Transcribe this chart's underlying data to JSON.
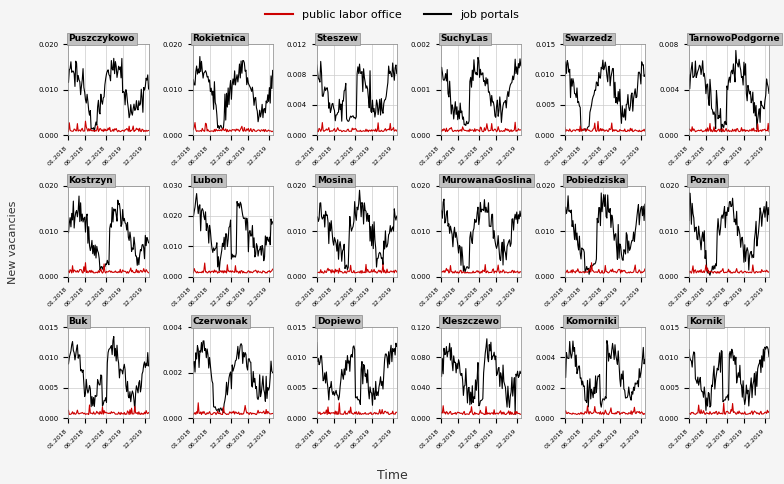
{
  "title": "",
  "xlabel": "Time",
  "ylabel": "New vacancies",
  "legend_labels": [
    "public labor office",
    "job portals"
  ],
  "legend_colors": [
    "#CC0000",
    "#000000"
  ],
  "subplots": [
    {
      "name": "Puszczykowo",
      "row": 0,
      "col": 0,
      "ylim": [
        0,
        0.02
      ],
      "yticks": [
        0.0,
        0.01,
        0.02
      ]
    },
    {
      "name": "Rokietnica",
      "row": 0,
      "col": 1,
      "ylim": [
        0,
        0.02
      ],
      "yticks": [
        0.0,
        0.01,
        0.02
      ]
    },
    {
      "name": "Steszew",
      "row": 0,
      "col": 2,
      "ylim": [
        0,
        0.012
      ],
      "yticks": [
        0.0,
        0.004,
        0.008,
        0.012
      ]
    },
    {
      "name": "SuchyLas",
      "row": 0,
      "col": 3,
      "ylim": [
        0,
        0.002
      ],
      "yticks": [
        0.0,
        0.001,
        0.002
      ]
    },
    {
      "name": "Swarzedz",
      "row": 0,
      "col": 4,
      "ylim": [
        0,
        0.015
      ],
      "yticks": [
        0.0,
        0.005,
        0.01,
        0.015
      ]
    },
    {
      "name": "TarnowoPodgorne",
      "row": 0,
      "col": 5,
      "ylim": [
        0,
        0.008
      ],
      "yticks": [
        0.0,
        0.004,
        0.008
      ]
    },
    {
      "name": "Kostrzyn",
      "row": 1,
      "col": 0,
      "ylim": [
        0,
        0.02
      ],
      "yticks": [
        0.0,
        0.01,
        0.02
      ]
    },
    {
      "name": "Lubon",
      "row": 1,
      "col": 1,
      "ylim": [
        0,
        0.03
      ],
      "yticks": [
        0.0,
        0.01,
        0.02,
        0.03
      ]
    },
    {
      "name": "Mosina",
      "row": 1,
      "col": 2,
      "ylim": [
        0,
        0.02
      ],
      "yticks": [
        0.0,
        0.01,
        0.02
      ]
    },
    {
      "name": "MurowanaGoslina",
      "row": 1,
      "col": 3,
      "ylim": [
        0,
        0.02
      ],
      "yticks": [
        0.0,
        0.01,
        0.02
      ]
    },
    {
      "name": "Pobiedziska",
      "row": 1,
      "col": 4,
      "ylim": [
        0,
        0.02
      ],
      "yticks": [
        0.0,
        0.01,
        0.02
      ]
    },
    {
      "name": "Poznan",
      "row": 1,
      "col": 5,
      "ylim": [
        0,
        0.02
      ],
      "yticks": [
        0.0,
        0.01,
        0.02
      ]
    },
    {
      "name": "Buk",
      "row": 2,
      "col": 0,
      "ylim": [
        0,
        0.015
      ],
      "yticks": [
        0.0,
        0.005,
        0.01,
        0.015
      ]
    },
    {
      "name": "Czerwonak",
      "row": 2,
      "col": 1,
      "ylim": [
        0,
        0.004
      ],
      "yticks": [
        0.0,
        0.002,
        0.004
      ]
    },
    {
      "name": "Dopiewo",
      "row": 2,
      "col": 2,
      "ylim": [
        0,
        0.015
      ],
      "yticks": [
        0.0,
        0.005,
        0.01,
        0.015
      ]
    },
    {
      "name": "Kleszczewo",
      "row": 2,
      "col": 3,
      "ylim": [
        0,
        0.12
      ],
      "yticks": [
        0.0,
        0.04,
        0.08,
        0.12
      ]
    },
    {
      "name": "Komorniki",
      "row": 2,
      "col": 4,
      "ylim": [
        0,
        0.006
      ],
      "yticks": [
        0.0,
        0.002,
        0.004,
        0.006
      ]
    },
    {
      "name": "Kornik",
      "row": 2,
      "col": 5,
      "ylim": [
        0,
        0.015
      ],
      "yticks": [
        0.0,
        0.005,
        0.01,
        0.015
      ]
    }
  ],
  "bg_color": "#F5F5F5",
  "panel_bg": "#FFFFFF",
  "grid_color": "#CCCCCC",
  "title_bg": "#C0C0C0",
  "n_points": 100,
  "seeds": {
    "Puszczykowo": {
      "black": 42,
      "red": 142
    },
    "Rokietnica": {
      "black": 43,
      "red": 143
    },
    "Steszew": {
      "black": 44,
      "red": 144
    },
    "SuchyLas": {
      "black": 45,
      "red": 145
    },
    "Swarzedz": {
      "black": 46,
      "red": 146
    },
    "TarnowoPodgorne": {
      "black": 47,
      "red": 147
    },
    "Kostrzyn": {
      "black": 48,
      "red": 148
    },
    "Lubon": {
      "black": 49,
      "red": 149
    },
    "Mosina": {
      "black": 50,
      "red": 150
    },
    "MurowanaGoslina": {
      "black": 51,
      "red": 151
    },
    "Pobiedziska": {
      "black": 52,
      "red": 152
    },
    "Poznan": {
      "black": 53,
      "red": 153
    },
    "Buk": {
      "black": 54,
      "red": 154
    },
    "Czerwonak": {
      "black": 55,
      "red": 155
    },
    "Dopiewo": {
      "black": 56,
      "red": 156
    },
    "Kleszczewo": {
      "black": 57,
      "red": 157
    },
    "Komorniki": {
      "black": 58,
      "red": 158
    },
    "Kornik": {
      "black": 59,
      "red": 159
    }
  },
  "xtick_labels": [
    "01.2018",
    "06.2018",
    "12.2018",
    "06.2019",
    "12.2019"
  ],
  "xtick_positions": [
    0,
    21,
    47,
    68,
    94
  ]
}
